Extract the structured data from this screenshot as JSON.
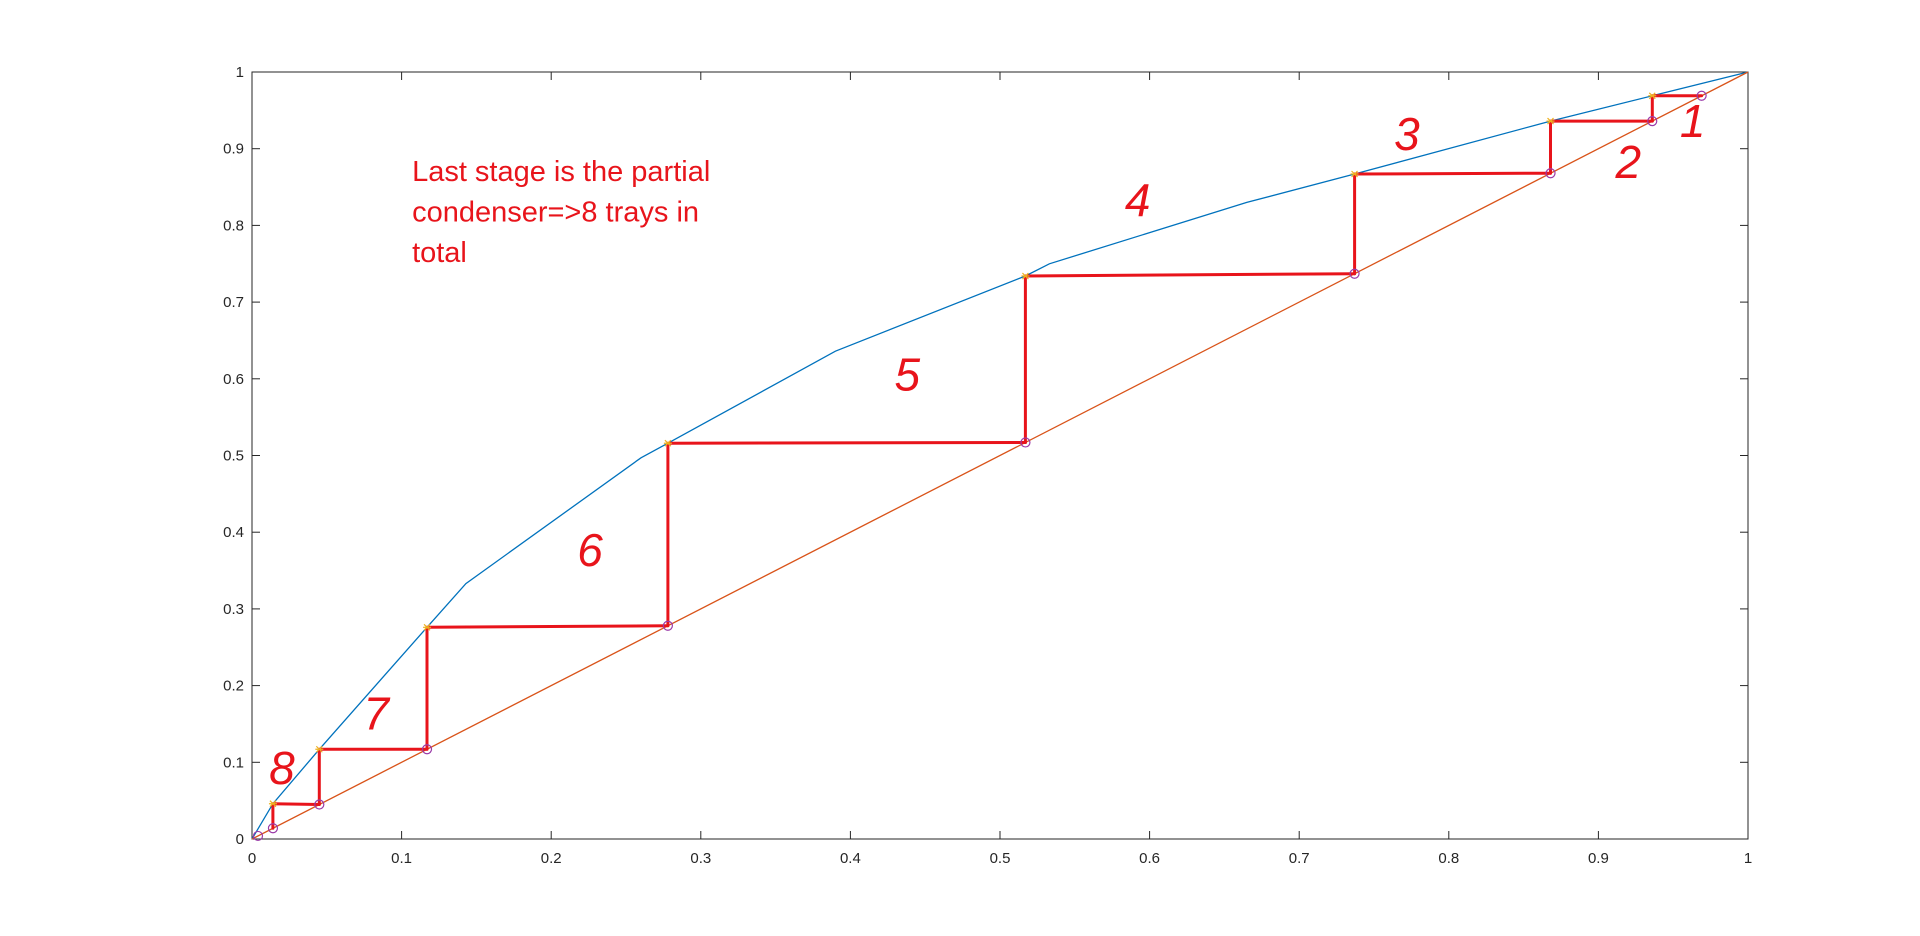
{
  "chart_data": {
    "type": "line",
    "title": "",
    "xlabel": "",
    "ylabel": "",
    "xlim": [
      0,
      1
    ],
    "ylim": [
      0,
      1
    ],
    "grid": false,
    "xticks": [
      "0",
      "0.1",
      "0.2",
      "0.3",
      "0.4",
      "0.5",
      "0.6",
      "0.7",
      "0.8",
      "0.9",
      "1"
    ],
    "yticks": [
      "0",
      "0.1",
      "0.2",
      "0.3",
      "0.4",
      "0.5",
      "0.6",
      "0.7",
      "0.8",
      "0.9",
      "1"
    ],
    "series": [
      {
        "color": "#0072bd",
        "x": [
          0,
          0.014,
          0.045,
          0.117,
          0.143,
          0.26,
          0.278,
          0.39,
          0.517,
          0.533,
          0.665,
          0.737,
          0.868,
          0.936,
          1
        ],
        "y": [
          0,
          0.046,
          0.117,
          0.276,
          0.333,
          0.497,
          0.516,
          0.636,
          0.734,
          0.75,
          0.83,
          0.867,
          0.936,
          0.969,
          1
        ]
      },
      {
        "color": "#d95319",
        "x": [
          0,
          1
        ],
        "y": [
          0,
          1
        ]
      }
    ],
    "equilibrium_markers": [
      {
        "x": 0.014,
        "y": 0.046
      },
      {
        "x": 0.045,
        "y": 0.117
      },
      {
        "x": 0.117,
        "y": 0.276
      },
      {
        "x": 0.278,
        "y": 0.516
      },
      {
        "x": 0.517,
        "y": 0.734
      },
      {
        "x": 0.737,
        "y": 0.867
      },
      {
        "x": 0.868,
        "y": 0.936
      },
      {
        "x": 0.936,
        "y": 0.969
      }
    ],
    "diagonal_markers": [
      {
        "x": 0.004,
        "y": 0.004
      },
      {
        "x": 0.014,
        "y": 0.014
      },
      {
        "x": 0.045,
        "y": 0.045
      },
      {
        "x": 0.117,
        "y": 0.117
      },
      {
        "x": 0.278,
        "y": 0.278
      },
      {
        "x": 0.517,
        "y": 0.517
      },
      {
        "x": 0.737,
        "y": 0.737
      },
      {
        "x": 0.868,
        "y": 0.868
      },
      {
        "x": 0.936,
        "y": 0.936
      },
      {
        "x": 0.969,
        "y": 0.969
      }
    ],
    "steps": [
      {
        "x": [
          0.969,
          0.936,
          0.936
        ],
        "y": [
          0.969,
          0.969,
          0.936
        ]
      },
      {
        "x": [
          0.936,
          0.868,
          0.868
        ],
        "y": [
          0.936,
          0.936,
          0.868
        ]
      },
      {
        "x": [
          0.868,
          0.737,
          0.737
        ],
        "y": [
          0.868,
          0.867,
          0.737
        ]
      },
      {
        "x": [
          0.737,
          0.517,
          0.517
        ],
        "y": [
          0.737,
          0.734,
          0.517
        ]
      },
      {
        "x": [
          0.517,
          0.278,
          0.278
        ],
        "y": [
          0.517,
          0.516,
          0.278
        ]
      },
      {
        "x": [
          0.278,
          0.117,
          0.117
        ],
        "y": [
          0.278,
          0.276,
          0.117
        ]
      },
      {
        "x": [
          0.117,
          0.045,
          0.045
        ],
        "y": [
          0.117,
          0.117,
          0.045
        ]
      },
      {
        "x": [
          0.045,
          0.014,
          0.014
        ],
        "y": [
          0.045,
          0.046,
          0.014
        ]
      }
    ],
    "annotation_color": "#e8141b",
    "annotations": [
      {
        "text": "Last stage is the partial",
        "x": 0.107,
        "y": 0.858
      },
      {
        "text": "condenser=>8 trays in",
        "x": 0.107,
        "y": 0.805
      },
      {
        "text": "total",
        "x": 0.107,
        "y": 0.752
      }
    ],
    "stage_labels": [
      {
        "text": "1",
        "x": 0.963,
        "y": 0.915
      },
      {
        "text": "2",
        "x": 0.92,
        "y": 0.862
      },
      {
        "text": "3",
        "x": 0.772,
        "y": 0.898
      },
      {
        "text": "4",
        "x": 0.592,
        "y": 0.812
      },
      {
        "text": "5",
        "x": 0.438,
        "y": 0.585
      },
      {
        "text": "6",
        "x": 0.226,
        "y": 0.356
      },
      {
        "text": "7",
        "x": 0.083,
        "y": 0.143
      },
      {
        "text": "8",
        "x": 0.02,
        "y": 0.072
      }
    ]
  }
}
